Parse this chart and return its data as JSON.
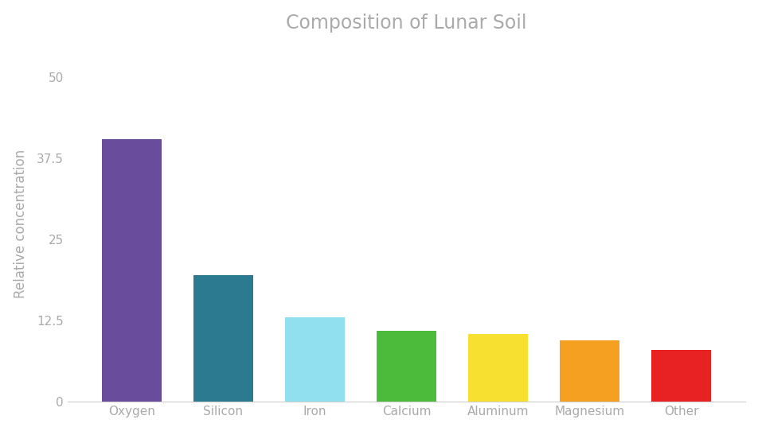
{
  "title": "Composition of Lunar Soil",
  "categories": [
    "Oxygen",
    "Silicon",
    "Iron",
    "Calcium",
    "Aluminum",
    "Magnesium",
    "Other"
  ],
  "values": [
    40.5,
    19.5,
    13.0,
    11.0,
    10.5,
    9.5,
    8.0
  ],
  "bar_colors": [
    "#6a4c9c",
    "#2b7a8f",
    "#90e0ef",
    "#4cbb3c",
    "#f7e030",
    "#f5a020",
    "#e82222"
  ],
  "ylabel": "Relative concentration",
  "ylim": [
    0,
    55
  ],
  "yticks": [
    0,
    12.5,
    25,
    37.5,
    50
  ],
  "ytick_labels": [
    "0",
    "12.5",
    "25",
    "37.5",
    "50"
  ],
  "background_color": "#ffffff",
  "title_color": "#aaaaaa",
  "tick_color": "#aaaaaa",
  "label_color": "#aaaaaa",
  "title_fontsize": 17,
  "ylabel_fontsize": 12,
  "tick_fontsize": 11,
  "bar_width": 0.65,
  "bar_gap": 0.5
}
